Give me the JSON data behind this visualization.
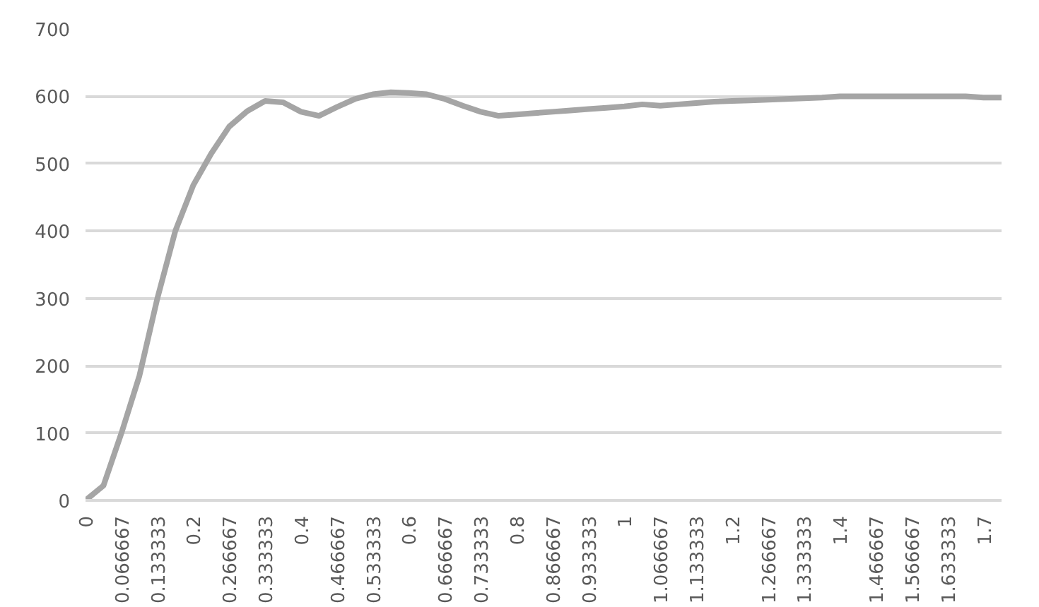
{
  "chart_data": {
    "type": "line",
    "categories": [
      "0",
      null,
      "0.066667",
      null,
      "0.133333",
      null,
      "0.2",
      null,
      "0.266667",
      null,
      "0.333333",
      null,
      "0.4",
      null,
      "0.466667",
      null,
      "0.533333",
      null,
      "0.6",
      null,
      "0.666667",
      null,
      "0.733333",
      null,
      "0.8",
      null,
      "0.866667",
      null,
      "0.933333",
      null,
      "1",
      null,
      "1.066667",
      null,
      "1.133333",
      null,
      "1.2",
      null,
      "1.266667",
      null,
      "1.333333",
      null,
      "1.4",
      null,
      "1.466667",
      null,
      "1.566667",
      null,
      "1.633333",
      null,
      "1.7",
      null
    ],
    "series": [
      {
        "color": "#a5a5a5",
        "values": [
          0,
          22,
          100,
          185,
          300,
          400,
          468,
          515,
          555,
          578,
          593,
          591,
          577,
          571,
          584,
          596,
          603,
          606,
          605,
          603,
          596,
          586,
          577,
          571,
          573,
          575,
          577,
          579,
          581,
          583,
          585,
          588,
          586,
          588,
          590,
          592,
          593,
          594,
          595,
          596,
          597,
          598,
          600,
          600,
          600,
          600,
          600,
          600,
          600,
          600,
          598,
          598
        ]
      }
    ],
    "ylim": [
      0,
      700
    ],
    "yticks": [
      0,
      100,
      200,
      300,
      400,
      500,
      600,
      700
    ],
    "grid": "y",
    "marker": "none",
    "line_style": "solid"
  }
}
